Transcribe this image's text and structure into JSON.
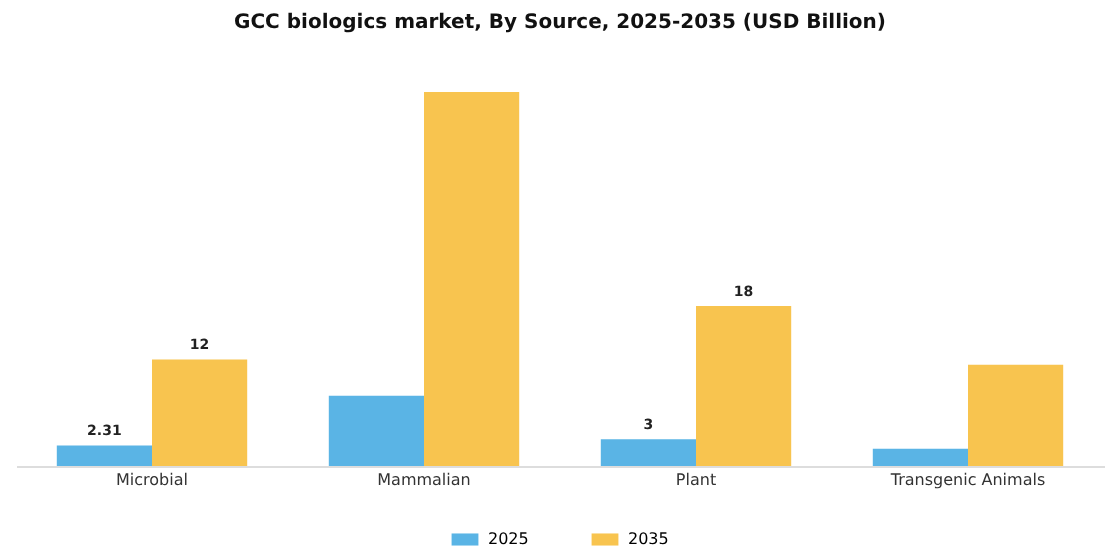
{
  "chart_data": {
    "type": "bar",
    "title": "GCC biologics market, By Source, 2025-2035 (USD Billion)",
    "categories": [
      "Microbial",
      "Mammalian",
      "Plant",
      "Transgenic Animals"
    ],
    "series": [
      {
        "name": "2025",
        "color": "#5ab4e5",
        "values": [
          2.31,
          7.9,
          3,
          1.95
        ],
        "value_labels": [
          "2.31",
          null,
          "3",
          null
        ]
      },
      {
        "name": "2035",
        "color": "#f8c44f",
        "values": [
          12,
          42.1,
          18,
          11.4
        ],
        "value_labels": [
          "12",
          null,
          "18",
          null
        ]
      }
    ],
    "legend": "bottom"
  }
}
